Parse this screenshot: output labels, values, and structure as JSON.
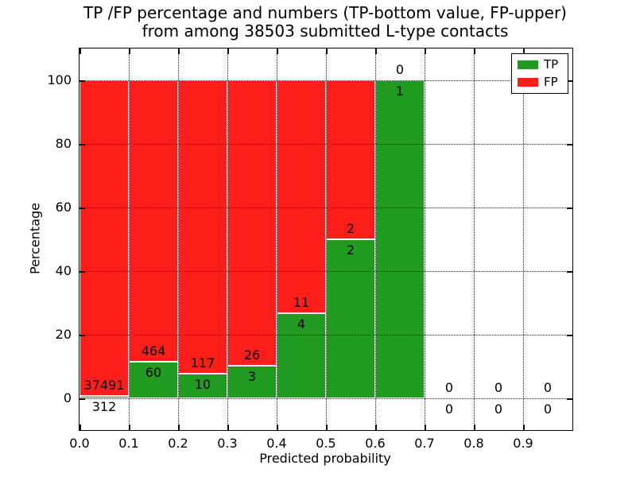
{
  "title": {
    "line1": "TP /FP percentage and numbers (TP-bottom value, FP-upper)",
    "line2": "from among 38503 submitted L-type contacts"
  },
  "chart_data": {
    "type": "bar",
    "stacked": true,
    "title": "TP /FP percentage and numbers (TP-bottom value, FP-upper) from among 38503 submitted L-type contacts",
    "xlabel": "Predicted probability",
    "ylabel": "Percentage",
    "total_submitted_contacts": 38503,
    "xlim": [
      0.0,
      1.0
    ],
    "ylim": [
      -10,
      110
    ],
    "xticks": [
      "0.0",
      "0.1",
      "0.2",
      "0.3",
      "0.4",
      "0.5",
      "0.6",
      "0.7",
      "0.8",
      "0.9"
    ],
    "yticks": [
      0,
      20,
      40,
      60,
      80,
      100
    ],
    "grid": "dotted, drawn above bars",
    "colors": {
      "tp": "#219a21",
      "fp": "#fc1e1a",
      "bar_edge": "#ffffff"
    },
    "legend": {
      "position": "upper-right",
      "entries": [
        {
          "label": "TP",
          "color": "#219a21"
        },
        {
          "label": "FP",
          "color": "#fc1e1a"
        }
      ]
    },
    "bins": [
      {
        "range": [
          0.0,
          0.1
        ],
        "tp": 312,
        "fp": 37491,
        "tp_pct": 0.83,
        "fp_pct": 99.17
      },
      {
        "range": [
          0.1,
          0.2
        ],
        "tp": 60,
        "fp": 464,
        "tp_pct": 11.45,
        "fp_pct": 88.55
      },
      {
        "range": [
          0.2,
          0.3
        ],
        "tp": 10,
        "fp": 117,
        "tp_pct": 7.87,
        "fp_pct": 92.13
      },
      {
        "range": [
          0.3,
          0.4
        ],
        "tp": 3,
        "fp": 26,
        "tp_pct": 10.34,
        "fp_pct": 89.66
      },
      {
        "range": [
          0.4,
          0.5
        ],
        "tp": 4,
        "fp": 11,
        "tp_pct": 26.67,
        "fp_pct": 73.33
      },
      {
        "range": [
          0.5,
          0.6
        ],
        "tp": 2,
        "fp": 2,
        "tp_pct": 50.0,
        "fp_pct": 50.0
      },
      {
        "range": [
          0.6,
          0.7
        ],
        "tp": 1,
        "fp": 0,
        "tp_pct": 100.0,
        "fp_pct": 0.0
      },
      {
        "range": [
          0.7,
          0.8
        ],
        "tp": 0,
        "fp": 0,
        "tp_pct": 0,
        "fp_pct": 0
      },
      {
        "range": [
          0.8,
          0.9
        ],
        "tp": 0,
        "fp": 0,
        "tp_pct": 0,
        "fp_pct": 0
      },
      {
        "range": [
          0.9,
          1.0
        ],
        "tp": 0,
        "fp": 0,
        "tp_pct": 0,
        "fp_pct": 0
      }
    ]
  }
}
